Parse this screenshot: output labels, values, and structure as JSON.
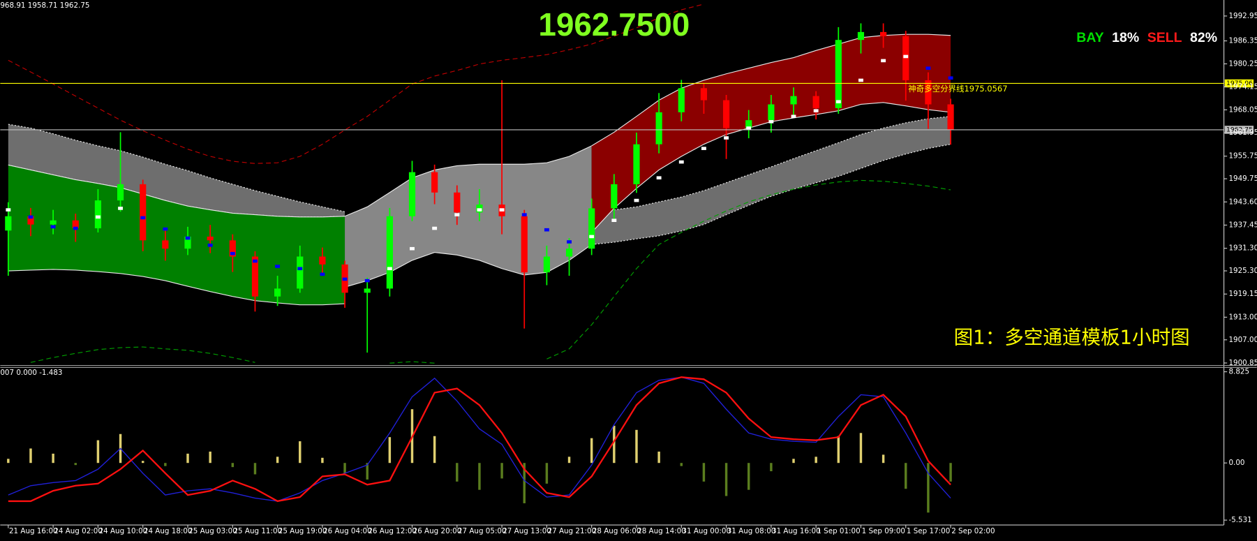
{
  "chart_data": [
    {
      "type": "candlestick",
      "title": "1962.7500",
      "header": "968.91 1958.71 1962.75",
      "annotation": "图1：多空通道模板1小时图",
      "sentiment": {
        "buy_label": "BAY",
        "buy": "18%",
        "sell_label": "SELL",
        "sell": "82%"
      },
      "categories": [
        "21 Aug 16:00",
        null,
        "24 Aug 02:00",
        null,
        "24 Aug 10:00",
        null,
        "24 Aug 18:00",
        null,
        "25 Aug 03:00",
        null,
        "25 Aug 11:00",
        null,
        "25 Aug 19:00",
        null,
        "26 Aug 04:00",
        null,
        "26 Aug 12:00",
        null,
        "26 Aug 20:00",
        null,
        "27 Aug 05:00",
        null,
        "27 Aug 13:00",
        null,
        "27 Aug 21:00",
        null,
        "28 Aug 06:00",
        null,
        "28 Aug 14:00",
        null,
        "31 Aug 00:00",
        null,
        "31 Aug 08:00",
        null,
        "31 Aug 16:00",
        null,
        "1 Sep 01:00",
        null,
        "1 Sep 09:00",
        null,
        "1 Sep 17:00",
        null,
        "2 Sep 02:00"
      ],
      "open": [
        1936.0,
        1939.8,
        1937.6,
        1938.7,
        1936.6,
        1944.0,
        1948.3,
        1933.4,
        1931.2,
        1934.4,
        1933.4,
        1929.1,
        1918.5,
        1920.6,
        1929.1,
        1927.0,
        1919.5,
        1920.6,
        1939.8,
        1951.5,
        1946.1,
        1940.8,
        1942.9,
        1939.8,
        1924.9,
        1929.1,
        1931.2,
        1941.9,
        1948.3,
        1958.9,
        1967.4,
        1973.8,
        1970.6,
        1963.2,
        1965.3,
        1969.5,
        1971.7,
        1968.5,
        1986.6,
        1988.7,
        1987.6,
        1975.9,
        1969.5
      ],
      "high": [
        1943.5,
        1942.0,
        1941.5,
        1940.5,
        1947.0,
        1962.1,
        1949.5,
        1936.0,
        1937.0,
        1937.5,
        1935.0,
        1930.5,
        1924.0,
        1932.0,
        1931.5,
        1928.0,
        1923.5,
        1942.0,
        1954.5,
        1953.5,
        1948.0,
        1947.0,
        1975.9,
        1941.5,
        1932.0,
        1934.0,
        1944.5,
        1951.0,
        1962.0,
        1972.5,
        1976.0,
        1975.0,
        1972.0,
        1968.0,
        1972.0,
        1974.0,
        1973.0,
        1990.0,
        1991.0,
        1991.0,
        1989.0,
        1978.0,
        1971.0
      ],
      "low": [
        1924.0,
        1934.5,
        1935.0,
        1933.0,
        1935.5,
        1941.0,
        1930.5,
        1928.0,
        1929.5,
        1930.0,
        1925.0,
        1914.5,
        1916.0,
        1919.5,
        1924.0,
        1915.5,
        1903.6,
        1918.5,
        1938.5,
        1943.0,
        1937.5,
        1938.5,
        1935.0,
        1910.0,
        1921.5,
        1924.0,
        1929.5,
        1939.0,
        1946.0,
        1956.5,
        1965.0,
        1967.0,
        1955.0,
        1960.5,
        1962.0,
        1966.5,
        1965.5,
        1967.0,
        1983.0,
        1984.5,
        1970.5,
        1963.0,
        1958.8
      ],
      "close": [
        1939.8,
        1937.6,
        1938.7,
        1936.6,
        1944.0,
        1948.3,
        1933.4,
        1931.2,
        1934.4,
        1933.4,
        1929.1,
        1918.5,
        1920.6,
        1929.1,
        1927.0,
        1919.5,
        1920.6,
        1939.8,
        1951.5,
        1946.1,
        1940.8,
        1942.9,
        1939.8,
        1924.9,
        1929.1,
        1931.2,
        1941.9,
        1948.3,
        1958.9,
        1967.4,
        1973.8,
        1970.6,
        1963.2,
        1965.3,
        1969.5,
        1971.7,
        1968.5,
        1986.6,
        1988.7,
        1987.6,
        1975.9,
        1969.5,
        1962.75
      ],
      "up_color": "#00ff00",
      "down_color": "#ff0000",
      "bands": [
        {
          "color": "#6e6e6e",
          "upper": [
            1964.2,
            1963.2,
            1961.7,
            1960.0,
            1958.5,
            1957.2,
            1955.5,
            1953.6,
            1951.9,
            1950.0,
            1948.3,
            1946.6,
            1945.1,
            1943.6,
            1942.3,
            1941.0,
            null,
            null,
            null,
            null,
            null,
            null,
            null,
            null,
            null,
            null,
            null,
            null,
            null,
            null,
            null,
            null,
            null,
            null,
            null,
            null,
            null,
            null,
            null,
            null,
            null,
            null,
            null
          ],
          "lower": [
            1953.4,
            1952.1,
            1950.8,
            1949.5,
            1948.5,
            1947.4,
            1945.7,
            1944.0,
            1942.5,
            1941.5,
            1940.6,
            1940.2,
            1939.8,
            1939.6,
            1939.6,
            1939.8,
            null,
            null,
            null,
            null,
            null,
            null,
            null,
            null,
            null,
            null,
            null,
            null,
            null,
            null,
            null,
            null,
            null,
            null,
            null,
            null,
            null,
            null,
            null,
            null,
            null,
            null,
            null
          ]
        },
        {
          "color": "#6e6e6e",
          "upper": [
            null,
            null,
            null,
            null,
            null,
            null,
            null,
            null,
            null,
            null,
            null,
            null,
            null,
            null,
            null,
            null,
            null,
            null,
            null,
            null,
            null,
            null,
            null,
            null,
            null,
            null,
            1940.8,
            1941.5,
            1942.3,
            1943.6,
            1944.9,
            1946.6,
            1948.7,
            1950.8,
            1952.9,
            1955.1,
            1957.2,
            1959.3,
            1961.5,
            1963.2,
            1964.6,
            1965.7,
            1966.3
          ],
          "lower": [
            null,
            null,
            null,
            null,
            null,
            null,
            null,
            null,
            null,
            null,
            null,
            null,
            null,
            null,
            null,
            null,
            null,
            null,
            null,
            null,
            null,
            null,
            null,
            null,
            null,
            null,
            1932.3,
            1932.9,
            1933.8,
            1934.6,
            1935.9,
            1937.6,
            1940.2,
            1942.7,
            1945.1,
            1947.0,
            1948.7,
            1950.4,
            1952.5,
            1954.6,
            1956.3,
            1957.8,
            1958.9
          ]
        },
        {
          "color": "#008000",
          "upper": [
            1953.4,
            1952.1,
            1950.8,
            1949.5,
            1948.5,
            1947.4,
            1945.7,
            1944.0,
            1942.5,
            1941.5,
            1940.6,
            1940.2,
            1939.8,
            1939.6,
            1939.6,
            1939.8,
            null,
            null,
            null,
            null,
            null,
            null,
            null,
            null,
            null,
            null,
            null,
            null,
            null,
            null,
            null,
            null,
            null,
            null,
            null,
            null,
            null,
            null,
            null,
            null,
            null,
            null,
            null
          ],
          "lower": [
            1925.3,
            1925.5,
            1925.7,
            1925.5,
            1925.1,
            1924.6,
            1923.8,
            1922.7,
            1921.2,
            1919.8,
            1918.5,
            1917.4,
            1916.8,
            1916.3,
            1916.3,
            1916.6,
            null,
            null,
            null,
            null,
            null,
            null,
            null,
            null,
            null,
            null,
            null,
            null,
            null,
            null,
            null,
            null,
            null,
            null,
            null,
            null,
            null,
            null,
            null,
            null,
            null,
            null,
            null
          ]
        },
        {
          "color": "#878787",
          "upper": [
            null,
            null,
            null,
            null,
            null,
            null,
            null,
            null,
            null,
            null,
            null,
            null,
            null,
            null,
            null,
            1939.8,
            1942.3,
            1946.1,
            1950.0,
            1952.1,
            1953.2,
            1953.6,
            1953.6,
            1953.6,
            1954.0,
            1955.7,
            1958.5,
            null,
            null,
            null,
            null,
            null,
            null,
            null,
            null,
            null,
            null,
            null,
            null,
            null,
            null,
            null,
            null
          ],
          "lower": [
            null,
            null,
            null,
            null,
            null,
            null,
            null,
            null,
            null,
            null,
            null,
            null,
            null,
            null,
            null,
            1921.0,
            1922.7,
            1924.9,
            1928.1,
            1930.2,
            1929.5,
            1928.1,
            1925.9,
            1924.2,
            1924.9,
            1928.1,
            1932.3,
            null,
            null,
            null,
            null,
            null,
            null,
            null,
            null,
            null,
            null,
            null,
            null,
            null,
            null,
            null,
            null
          ]
        },
        {
          "color": "#8b0000",
          "upper": [
            null,
            null,
            null,
            null,
            null,
            null,
            null,
            null,
            null,
            null,
            null,
            null,
            null,
            null,
            null,
            null,
            null,
            null,
            null,
            null,
            null,
            null,
            null,
            null,
            null,
            null,
            1958.5,
            1962.1,
            1966.3,
            1970.6,
            1973.8,
            1975.9,
            1977.6,
            1979.1,
            1980.6,
            1981.9,
            1983.8,
            1985.5,
            1987.2,
            1987.8,
            1988.1,
            1988.1,
            1987.8
          ],
          "lower": [
            null,
            null,
            null,
            null,
            null,
            null,
            null,
            null,
            null,
            null,
            null,
            null,
            null,
            null,
            null,
            null,
            null,
            null,
            null,
            null,
            null,
            null,
            null,
            null,
            null,
            null,
            1935.5,
            1941.9,
            1947.2,
            1952.1,
            1955.7,
            1958.9,
            1961.5,
            1963.2,
            1964.9,
            1965.9,
            1966.8,
            1967.8,
            1969.5,
            1970.0,
            1969.1,
            1968.1,
            1967.4
          ]
        }
      ],
      "midline": {
        "color": "#0000ff",
        "rise_color": "#ffffff",
        "values": [
          1941.5,
          1939.6,
          1937.0,
          1936.6,
          1939.6,
          1941.9,
          1939.4,
          1936.4,
          1934.0,
          1932.1,
          1929.9,
          1927.9,
          1926.5,
          1925.9,
          1924.4,
          1923.1,
          1922.7,
          1925.9,
          1931.2,
          1936.6,
          1940.2,
          1941.5,
          1941.5,
          1940.2,
          1936.2,
          1933.0,
          1934.4,
          1938.7,
          1944.0,
          1950.0,
          1954.2,
          1957.8,
          1960.6,
          1963.2,
          1964.9,
          1966.3,
          1967.8,
          1970.2,
          1975.9,
          1981.1,
          1982.2,
          1979.1,
          1976.5
        ]
      },
      "envelopes": [
        {
          "color": "#c00000",
          "values": [
            1981.2,
            1978.1,
            1974.9,
            1971.7,
            1968.5,
            1965.3,
            1962.5,
            1960.0,
            1957.6,
            1955.7,
            1954.4,
            1953.8,
            1954.0,
            1955.7,
            1958.9,
            1962.7,
            1966.3,
            1970.6,
            1974.9,
            1977.0,
            1978.5,
            1980.2,
            1981.2,
            1981.9,
            1982.7,
            1984.0,
            1985.5,
            1987.6,
            1989.8,
            1992.5,
            1994.6,
            1996.1,
            null,
            null,
            null,
            null,
            null,
            null,
            null,
            null,
            null,
            null,
            null
          ]
        },
        {
          "color": "#00a000",
          "values": [
            null,
            1901.0,
            1902.3,
            1903.4,
            1904.4,
            1904.9,
            1905.1,
            1904.6,
            1904.2,
            1903.4,
            1902.3,
            1901.0,
            null,
            null,
            null,
            null,
            null,
            1900.8,
            1901.2,
            1900.8,
            null,
            null,
            null,
            null,
            1901.9,
            1904.6,
            1911.0,
            1918.5,
            1925.9,
            1932.3,
            1935.5,
            1938.5,
            1941.2,
            1943.6,
            1945.5,
            1947.0,
            1948.1,
            1948.9,
            1949.3,
            1949.1,
            1948.5,
            1947.8,
            1946.8
          ]
        }
      ],
      "levels": [
        {
          "value": 1975.06,
          "color": "#ffff00",
          "note": "神奇多空分界线1975.0567"
        },
        {
          "value": 1962.75,
          "color": "#c0c0c0"
        }
      ],
      "ylim": [
        1900.4,
        1997.2
      ],
      "yticks": [
        1992.95,
        1986.35,
        1980.25,
        1974.15,
        1968.05,
        1961.95,
        1955.75,
        1949.75,
        {
          "value": 1943.6,
          "label": "1943.60"
        },
        1937.45,
        {
          "value": 1931.3,
          "label": "1931.30"
        },
        {
          "value": 1925.3,
          "label": "1925.30"
        },
        1919.15,
        {
          "value": 1913,
          "label": "1913.00"
        },
        {
          "value": 1907,
          "label": "1907.00"
        },
        1900.85
      ]
    },
    {
      "type": "oscillator",
      "header": "007 0.000 -1.483",
      "histogram": {
        "pos_color": "#e0d070",
        "neg_color": "#5a7d1e",
        "values": [
          0.4,
          1.4,
          0.9,
          -0.2,
          2.2,
          2.8,
          0.2,
          -0.3,
          0.9,
          1.1,
          -0.4,
          -1.1,
          0.6,
          2.1,
          0.5,
          -1.0,
          -1.6,
          2.5,
          5.2,
          2.6,
          -1.8,
          -2.6,
          -1.5,
          -3.9,
          -2.0,
          0.6,
          2.4,
          3.6,
          3.2,
          1.1,
          -0.3,
          -1.8,
          -3.2,
          -2.6,
          -0.8,
          0.4,
          0.6,
          2.6,
          2.9,
          0.8,
          -2.5,
          -4.8,
          -1.8
        ]
      },
      "series": [
        {
          "color": "#2020d8",
          "values": [
            -3.1,
            -2.2,
            -1.9,
            -1.7,
            -0.6,
            1.4,
            -1.0,
            -3.1,
            -2.7,
            -2.5,
            -2.9,
            -3.4,
            -3.7,
            -2.9,
            -1.7,
            -1.0,
            -0.2,
            2.9,
            6.4,
            8.2,
            6.0,
            3.3,
            1.8,
            -1.7,
            -3.3,
            -3.1,
            -0.2,
            3.7,
            6.8,
            8.0,
            8.3,
            7.7,
            5.2,
            2.9,
            2.3,
            2.1,
            2.0,
            4.5,
            6.6,
            6.4,
            2.9,
            -1.0,
            -3.4
          ]
        },
        {
          "color": "#ff1010",
          "values": [
            -3.7,
            -3.7,
            -2.7,
            -2.2,
            -2.0,
            -0.6,
            1.2,
            -1.0,
            -3.1,
            -2.7,
            -1.7,
            -2.5,
            -3.7,
            -3.3,
            -1.3,
            -1.1,
            -2.1,
            -1.7,
            2.5,
            6.8,
            7.2,
            5.6,
            2.9,
            -0.6,
            -2.9,
            -3.3,
            -1.3,
            2.1,
            5.6,
            7.7,
            8.3,
            8.1,
            6.8,
            4.3,
            2.5,
            2.3,
            2.2,
            2.5,
            5.6,
            6.6,
            4.5,
            0.2,
            -2.1
          ]
        }
      ],
      "ylim": [
        -6.0,
        9.2
      ],
      "yticks": [
        8.825,
        {
          "value": 0,
          "label": "0.00"
        },
        -5.531
      ]
    }
  ]
}
